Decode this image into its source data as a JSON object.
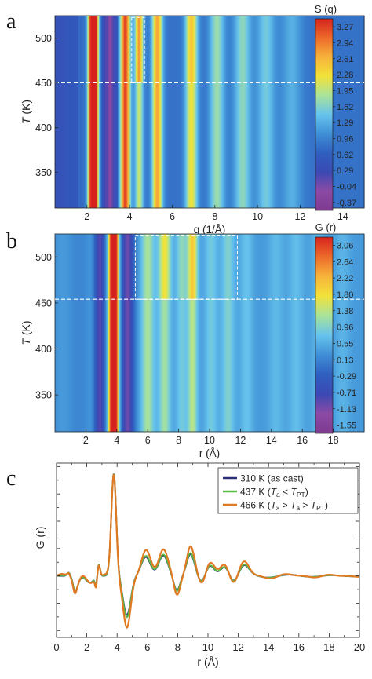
{
  "colors": {
    "colormap": [
      "#7e3a8f",
      "#8c4aa5",
      "#3a49b3",
      "#2f5fbf",
      "#3f8fd6",
      "#66c3ec",
      "#a9e39a",
      "#f2e23a",
      "#f7b33b",
      "#ec6a2a",
      "#d6231e"
    ],
    "line_310": "#2b2f7a",
    "line_437": "#58b947",
    "line_466": "#e07a22"
  },
  "chart_data": [
    {
      "panel": "a",
      "type": "heatmap",
      "title": "",
      "xlabel": "q (1/Å)",
      "ylabel": "T (K)",
      "xlim": [
        0.5,
        15
      ],
      "ylim": [
        310,
        525
      ],
      "xticks": [
        "2",
        "4",
        "6",
        "8",
        "10",
        "12",
        "14"
      ],
      "yticks": [
        "350",
        "400",
        "450",
        "500"
      ],
      "colorbar_title": "S (q)",
      "colorbar_ticks": [
        "3.27",
        "2.94",
        "2.61",
        "2.28",
        "1.95",
        "1.62",
        "1.29",
        "0.96",
        "0.62",
        "0.29",
        "-0.04",
        "-0.37"
      ],
      "transition_T": 450,
      "highlight_box": {
        "x": [
          4.1,
          4.7
        ],
        "T": [
          450,
          523
        ]
      },
      "peaks": [
        {
          "q": 2.3,
          "S": 3.2
        },
        {
          "q": 3.8,
          "S": 2.0
        },
        {
          "q": 4.4,
          "S": 1.3
        },
        {
          "q": 5.3,
          "S": 1.6
        },
        {
          "q": 6.9,
          "S": 1.3
        },
        {
          "q": 8.1,
          "S": 1.05
        },
        {
          "q": 9.3,
          "S": 1.0
        },
        {
          "q": 10.4,
          "S": 0.95
        }
      ]
    },
    {
      "panel": "b",
      "type": "heatmap",
      "title": "",
      "xlabel": "r (Å)",
      "ylabel": "T (K)",
      "xlim": [
        0,
        20
      ],
      "ylim": [
        310,
        525
      ],
      "xticks": [
        "2",
        "4",
        "6",
        "8",
        "10",
        "12",
        "14",
        "16",
        "18"
      ],
      "yticks": [
        "350",
        "400",
        "450",
        "500"
      ],
      "colorbar_title": "G (r)",
      "colorbar_ticks": [
        "3.06",
        "2.64",
        "2.22",
        "1.80",
        "1.38",
        "0.96",
        "0.55",
        "0.13",
        "-0.29",
        "-0.71",
        "-1.13",
        "-1.55"
      ],
      "transition_T": 454,
      "highlight_box": {
        "x": [
          5.2,
          11.8
        ],
        "T": [
          454,
          523
        ]
      },
      "peaks": [
        {
          "r": 2.9,
          "G": -1.4
        },
        {
          "r": 3.8,
          "G": 3.0
        },
        {
          "r": 4.7,
          "G": -1.5
        },
        {
          "r": 6.0,
          "G": 1.0
        },
        {
          "r": 7.1,
          "G": 1.2
        },
        {
          "r": 8.2,
          "G": 0.9
        },
        {
          "r": 8.9,
          "G": 1.3
        },
        {
          "r": 10.1,
          "G": 0.5
        },
        {
          "r": 11.2,
          "G": 0.6
        },
        {
          "r": 12.4,
          "G": 0.45
        },
        {
          "r": 14.3,
          "G": 0.3
        },
        {
          "r": 15.6,
          "G": 0.35
        },
        {
          "r": 17.0,
          "G": 0.25
        },
        {
          "r": 18.6,
          "G": 0.2
        }
      ]
    },
    {
      "panel": "c",
      "type": "line",
      "title": "",
      "xlabel": "r (Å)",
      "ylabel": "G (r)",
      "xlim": [
        0,
        20
      ],
      "ylim": [
        -1.8,
        3.3
      ],
      "xticks": [
        "0",
        "2",
        "4",
        "6",
        "8",
        "10",
        "12",
        "14",
        "16",
        "18",
        "20"
      ],
      "legend_position": "top-right",
      "series": [
        {
          "name": "310 K (as cast)",
          "legend_parts": [
            [
              "310 K (as cast)",
              ""
            ]
          ]
        },
        {
          "name": "437 K (Ta < TPT)",
          "legend_parts": [
            [
              "437 K (",
              ""
            ],
            [
              "T",
              "i"
            ],
            [
              "a",
              "sub"
            ],
            [
              " < ",
              ""
            ],
            [
              "T",
              "i"
            ],
            [
              "PT",
              "sub"
            ],
            [
              ")",
              ""
            ]
          ]
        },
        {
          "name": "466 K (Tx > Ta > TPT)",
          "legend_parts": [
            [
              "466 K (",
              ""
            ],
            [
              "T",
              "i"
            ],
            [
              "x",
              "sub"
            ],
            [
              " > ",
              ""
            ],
            [
              "T",
              "i"
            ],
            [
              "a",
              "sub"
            ],
            [
              " > ",
              ""
            ],
            [
              "T",
              "i"
            ],
            [
              "PT",
              "sub"
            ],
            [
              ")",
              ""
            ]
          ]
        }
      ]
    }
  ],
  "panel_labels": [
    "a",
    "b",
    "c"
  ]
}
